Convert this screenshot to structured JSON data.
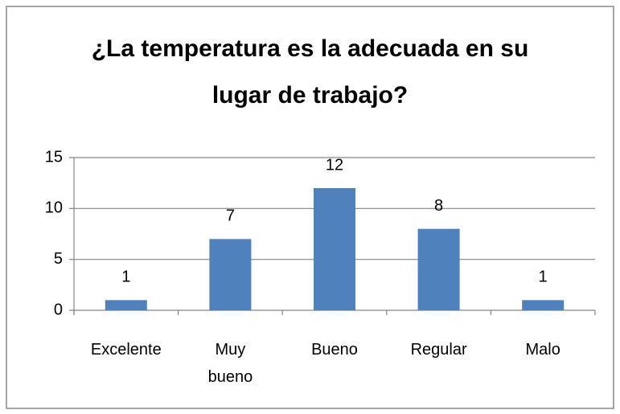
{
  "chart_data": {
    "type": "bar",
    "title": "¿La temperatura es la adecuada en su lugar de trabajo?",
    "categories": [
      "Excelente",
      "Muy bueno",
      "Bueno",
      "Regular",
      "Malo"
    ],
    "values": [
      1,
      7,
      12,
      8,
      1
    ],
    "color": "#4f81bd",
    "ylim": [
      0,
      15
    ],
    "yticks": [
      0,
      5,
      10,
      15
    ],
    "grid": true
  }
}
